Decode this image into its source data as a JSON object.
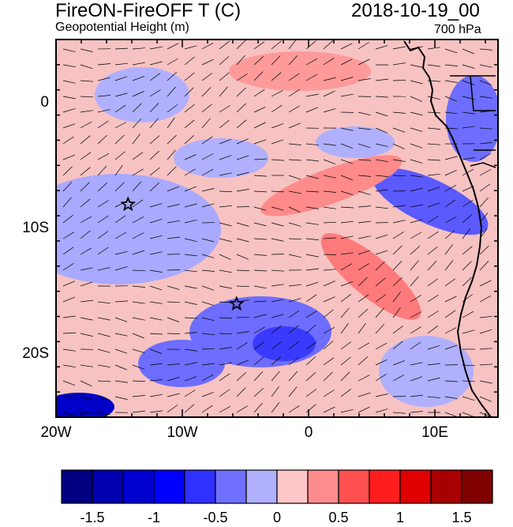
{
  "header": {
    "title_left": "FireON-FireOFF T (C)",
    "title_right": "2018-10-19_00",
    "subtitle_left": "Geopotential Height (m)",
    "subtitle_right": "700 hPa"
  },
  "map": {
    "lon_range": [
      -20,
      15
    ],
    "lat_range": [
      -25,
      5
    ],
    "y_ticks": [
      {
        "lat": 0,
        "label": "0"
      },
      {
        "lat": -10,
        "label": "10S"
      },
      {
        "lat": -20,
        "label": "20S"
      }
    ],
    "x_ticks": [
      {
        "lon": -20,
        "label": "20W"
      },
      {
        "lon": -10,
        "label": "10W"
      },
      {
        "lon": 0,
        "label": "0"
      },
      {
        "lon": 10,
        "label": "10E"
      }
    ],
    "stars": [
      {
        "lon": -14.3,
        "lat": -8.1
      },
      {
        "lon": -5.7,
        "lat": -16.0
      }
    ],
    "wind_barbs": "dense field of thin black wind barbs",
    "coastline": "west coast of central/southern Africa"
  },
  "colorbar": {
    "colors": [
      "#000080",
      "#0000b0",
      "#0000d0",
      "#0000ff",
      "#3030ff",
      "#7070ff",
      "#b0b0ff",
      "#ffc8c8",
      "#ff8c8c",
      "#ff5050",
      "#ff1e1e",
      "#e00000",
      "#a80000",
      "#800000"
    ],
    "labels": [
      "-1.5",
      "-1",
      "-0.5",
      "0",
      "0.5",
      "1",
      "1.5"
    ]
  }
}
